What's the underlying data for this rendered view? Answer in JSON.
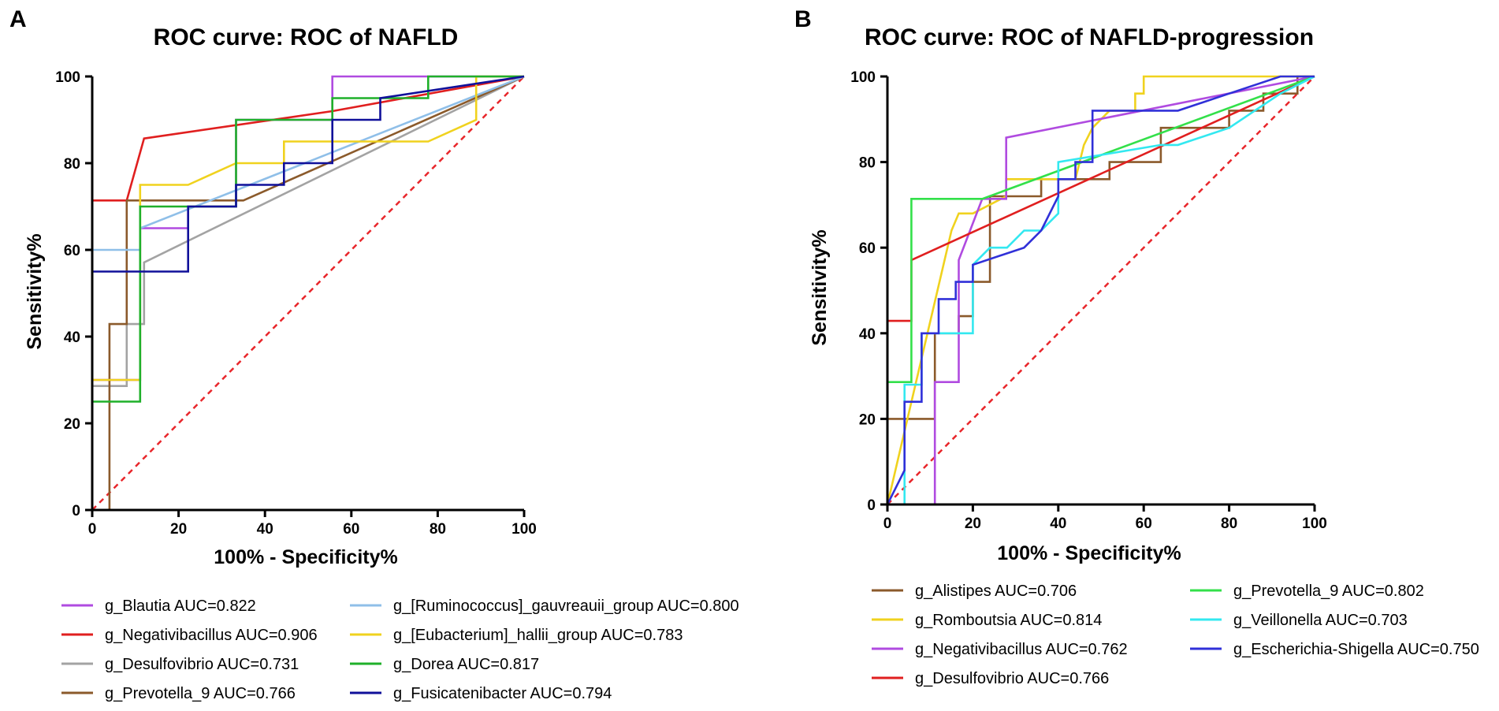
{
  "chart_data": [
    {
      "panel": "A",
      "type": "line",
      "title": "ROC curve: ROC of NAFLD",
      "xlabel": "100% - Specificity%",
      "ylabel": "Sensitivity%",
      "xlim": [
        0,
        100
      ],
      "ylim": [
        0,
        100
      ],
      "xticks": [
        "0",
        "20",
        "40",
        "60",
        "80",
        "100"
      ],
      "yticks": [
        "0",
        "20",
        "40",
        "60",
        "80",
        "100"
      ],
      "reference_line": {
        "x": [
          0,
          100
        ],
        "y": [
          0,
          100
        ],
        "color": "#e8262b",
        "style": "dashed"
      },
      "series": [
        {
          "name": "g_Blautia",
          "auc_label": "g_Blautia AUC=0.822",
          "color": "#b04be0",
          "x": [
            0,
            0,
            11.1,
            11.1,
            22.2,
            22.2,
            33.3,
            33.3,
            55.6,
            55.6,
            100
          ],
          "y": [
            0,
            30,
            30,
            65,
            65,
            70,
            70,
            90,
            90,
            100,
            100
          ]
        },
        {
          "name": "g_Negativibacillus",
          "auc_label": "g_Negativibacillus AUC=0.906",
          "color": "#e01f1f",
          "x": [
            0,
            0,
            8,
            12,
            55.6,
            100
          ],
          "y": [
            0,
            71.4,
            71.4,
            85.7,
            92,
            100
          ]
        },
        {
          "name": "g_Desulfovibrio",
          "auc_label": "g_Desulfovibrio AUC=0.731",
          "color": "#a3a3a3",
          "x": [
            0,
            0,
            8,
            8,
            12,
            12,
            100
          ],
          "y": [
            0,
            28.6,
            28.6,
            42.9,
            42.9,
            57.1,
            100
          ]
        },
        {
          "name": "g_Prevotella_9",
          "auc_label": "g_Prevotella_9 AUC=0.766",
          "color": "#8b5a2b",
          "x": [
            0,
            4,
            4,
            8,
            8,
            35,
            100
          ],
          "y": [
            0,
            0,
            42.9,
            42.9,
            71.4,
            71.4,
            100
          ]
        },
        {
          "name": "g_[Ruminococcus]_gauvreauii_group",
          "auc_label": "g_[Ruminococcus]_gauvreauii_group AUC=0.800",
          "color": "#8fbfe8",
          "x": [
            0,
            0,
            11.1,
            11.1,
            100
          ],
          "y": [
            0,
            60,
            60,
            65,
            100
          ]
        },
        {
          "name": "g_[Eubacterium]_hallii_group",
          "auc_label": "g_[Eubacterium]_hallii_group AUC=0.783",
          "color": "#f0d21e",
          "x": [
            0,
            0,
            11.1,
            11.1,
            22.2,
            33.3,
            44.4,
            44.4,
            77.8,
            88.9,
            88.9,
            100
          ],
          "y": [
            0,
            30,
            30,
            75,
            75,
            80,
            80,
            85,
            85,
            90,
            100,
            100
          ]
        },
        {
          "name": "g_Dorea",
          "auc_label": "g_Dorea AUC=0.817",
          "color": "#1fb02a",
          "x": [
            0,
            0,
            11.1,
            11.1,
            33.3,
            33.3,
            55.6,
            55.6,
            77.8,
            77.8,
            100
          ],
          "y": [
            0,
            25,
            25,
            70,
            70,
            90,
            90,
            95,
            95,
            100,
            100
          ]
        },
        {
          "name": "g_Fusicatenibacter",
          "auc_label": "g_Fusicatenibacter AUC=0.794",
          "color": "#10109a",
          "x": [
            0,
            0,
            22.2,
            22.2,
            33.3,
            33.3,
            44.4,
            44.4,
            55.6,
            55.6,
            66.7,
            66.7,
            100
          ],
          "y": [
            0,
            55,
            55,
            70,
            70,
            75,
            75,
            80,
            80,
            90,
            90,
            95,
            100
          ]
        }
      ]
    },
    {
      "panel": "B",
      "type": "line",
      "title": "ROC curve: ROC of NAFLD-progression",
      "xlabel": "100% - Specificity%",
      "ylabel": "Sensitivity%",
      "xlim": [
        0,
        100
      ],
      "ylim": [
        0,
        100
      ],
      "xticks": [
        "0",
        "20",
        "40",
        "60",
        "80",
        "100"
      ],
      "yticks": [
        "0",
        "20",
        "40",
        "60",
        "80",
        "100"
      ],
      "reference_line": {
        "x": [
          0,
          100
        ],
        "y": [
          0,
          100
        ],
        "color": "#e8262b",
        "style": "dashed"
      },
      "series": [
        {
          "name": "g_Alistipes",
          "auc_label": "g_Alistipes AUC=0.706",
          "color": "#8b5a2b",
          "x": [
            0,
            0,
            5.6,
            5.6,
            11.1,
            11.1,
            16.7,
            16.7,
            20,
            20,
            24,
            24,
            36,
            36,
            44,
            44,
            52,
            52,
            64,
            64,
            80,
            80,
            88,
            88,
            96,
            96,
            100
          ],
          "y": [
            0,
            20,
            20,
            20,
            20,
            40,
            40,
            44,
            44,
            52,
            52,
            72,
            72,
            76,
            76,
            76,
            76,
            80,
            80,
            88,
            88,
            92,
            92,
            96,
            96,
            100,
            100
          ]
        },
        {
          "name": "g_Romboutsia",
          "auc_label": "g_Romboutsia AUC=0.814",
          "color": "#f0d21e",
          "x": [
            0,
            15,
            16.7,
            20,
            27.8,
            27.8,
            44,
            46,
            48,
            52,
            56,
            56,
            58,
            58,
            60,
            60,
            100
          ],
          "y": [
            0,
            64,
            68,
            68,
            72,
            76,
            76,
            84,
            88,
            92,
            92,
            92,
            92,
            96,
            96,
            100,
            100
          ]
        },
        {
          "name": "g_Negativibacillus",
          "auc_label": "g_Negativibacillus AUC=0.762",
          "color": "#b04be0",
          "x": [
            0,
            11.1,
            11.1,
            16.7,
            16.7,
            22.2,
            27.8,
            27.8,
            100
          ],
          "y": [
            0,
            0,
            28.6,
            28.6,
            57.1,
            71.4,
            71.4,
            85.7,
            100
          ]
        },
        {
          "name": "g_Desulfovibrio",
          "auc_label": "g_Desulfovibrio AUC=0.766",
          "color": "#e01f1f",
          "x": [
            0,
            0,
            5.6,
            5.6,
            100
          ],
          "y": [
            0,
            42.9,
            42.9,
            57.1,
            100
          ]
        },
        {
          "name": "g_Prevotella_9",
          "auc_label": "g_Prevotella_9 AUC=0.802",
          "color": "#33e04a",
          "x": [
            0,
            0,
            5.6,
            5.6,
            22.2,
            100
          ],
          "y": [
            0,
            28.6,
            28.6,
            71.4,
            71.4,
            100
          ]
        },
        {
          "name": "g_Veillonella",
          "auc_label": "g_Veillonella AUC=0.703",
          "color": "#33e8f0",
          "x": [
            0,
            4,
            4,
            8,
            8,
            20,
            20,
            24,
            28,
            32,
            36,
            40,
            40,
            64,
            68,
            80,
            92,
            100
          ],
          "y": [
            0,
            0,
            28,
            28,
            40,
            40,
            56,
            60,
            60,
            64,
            64,
            68,
            80,
            84,
            84,
            88,
            96,
            100
          ]
        },
        {
          "name": "g_Escherichia-Shigella",
          "auc_label": "g_Escherichia-Shigella AUC=0.750",
          "color": "#3030d8",
          "x": [
            0,
            4,
            4,
            8,
            8,
            12,
            12,
            16,
            16,
            20,
            20,
            32,
            36,
            40,
            40,
            44,
            44,
            48,
            48,
            68,
            80,
            92,
            100
          ],
          "y": [
            0,
            8,
            24,
            24,
            40,
            40,
            48,
            48,
            52,
            52,
            56,
            60,
            64,
            72,
            76,
            76,
            80,
            80,
            92,
            92,
            96,
            100,
            100
          ]
        }
      ]
    }
  ]
}
